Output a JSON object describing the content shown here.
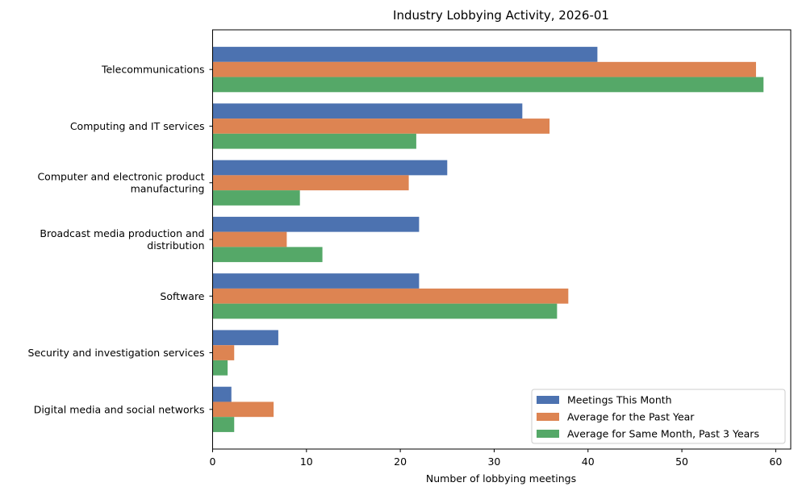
{
  "chart_data": {
    "type": "bar",
    "orientation": "horizontal",
    "title": "Industry Lobbying Activity, 2026-01",
    "xlabel": "Number of lobbying meetings",
    "ylabel": "",
    "xlim": [
      0,
      61.6
    ],
    "xticks": [
      0,
      10,
      20,
      30,
      40,
      50,
      60
    ],
    "grid": false,
    "legend_position": "lower-right",
    "categories": [
      [
        "Telecommunications"
      ],
      [
        "Computing and IT services"
      ],
      [
        "Computer and electronic product",
        "manufacturing"
      ],
      [
        "Broadcast media production and",
        "distribution"
      ],
      [
        "Software"
      ],
      [
        "Security and investigation services"
      ],
      [
        "Digital media and social networks"
      ]
    ],
    "series": [
      {
        "name": "Meetings This Month",
        "color": "#4c72b0",
        "values": [
          41,
          33,
          25,
          22,
          22,
          7,
          2
        ]
      },
      {
        "name": "Average for the Past Year",
        "color": "#dd8452",
        "values": [
          57.9,
          35.9,
          20.9,
          7.9,
          37.9,
          2.3,
          6.5
        ]
      },
      {
        "name": "Average for Same Month, Past 3 Years",
        "color": "#55a868",
        "values": [
          58.7,
          21.7,
          9.3,
          11.7,
          36.7,
          1.6,
          2.3
        ]
      }
    ]
  }
}
